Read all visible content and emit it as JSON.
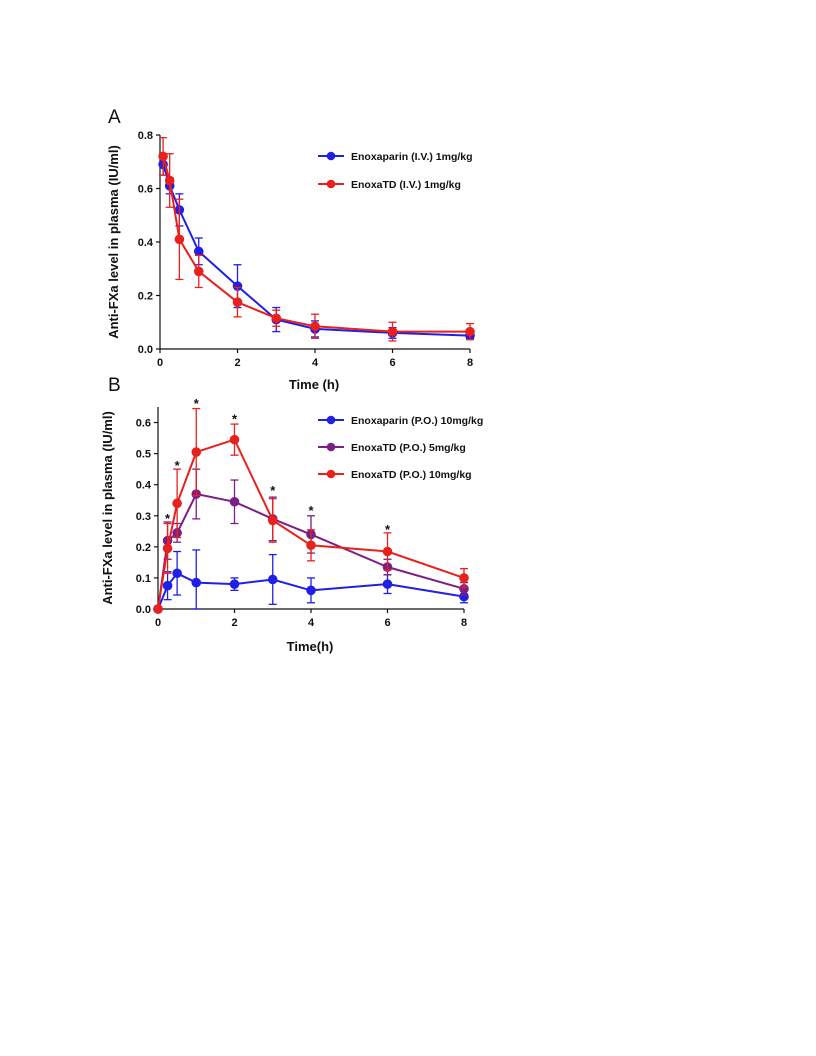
{
  "chart_data": [
    {
      "type": "line",
      "panel_label": "A",
      "xlabel": "Time (h)",
      "ylabel": "Anti-FXa level in plasma (IU/ml)",
      "xlim": [
        0,
        8
      ],
      "ylim": [
        0,
        0.8
      ],
      "x_ticks": [
        "0",
        "2",
        "4",
        "6",
        "8"
      ],
      "y_ticks": [
        "0.0",
        "0.2",
        "0.4",
        "0.6",
        "0.8"
      ],
      "x_tick_values": [
        0,
        2,
        4,
        6,
        8
      ],
      "y_tick_values": [
        0,
        0.2,
        0.4,
        0.6,
        0.8
      ],
      "grid": false,
      "legend_position": "top-right",
      "significance_marks": [],
      "series": [
        {
          "name": "Enoxaparin (I.V.) 1mg/kg",
          "color": "#1f1fe6",
          "x": [
            0.08,
            0.25,
            0.5,
            1,
            2,
            3,
            4,
            6,
            8
          ],
          "y": [
            0.69,
            0.61,
            0.52,
            0.365,
            0.235,
            0.11,
            0.075,
            0.06,
            0.05
          ],
          "err": [
            0.04,
            0.03,
            0.06,
            0.05,
            0.08,
            0.045,
            0.03,
            0.02,
            0.01
          ]
        },
        {
          "name": "EnoxaTD (I.V.) 1mg/kg",
          "color": "#e8211c",
          "x": [
            0.08,
            0.25,
            0.5,
            1,
            2,
            3,
            4,
            6,
            8
          ],
          "y": [
            0.72,
            0.63,
            0.41,
            0.29,
            0.175,
            0.115,
            0.085,
            0.065,
            0.065
          ],
          "err": [
            0.07,
            0.1,
            0.15,
            0.06,
            0.055,
            0.03,
            0.045,
            0.035,
            0.03
          ]
        }
      ]
    },
    {
      "type": "line",
      "panel_label": "B",
      "xlabel": "Time(h)",
      "ylabel": "Anti-FXa level in plasma (IU/ml)",
      "xlim": [
        0,
        8
      ],
      "ylim": [
        0,
        0.65
      ],
      "x_ticks": [
        "0",
        "2",
        "4",
        "6",
        "8"
      ],
      "y_ticks": [
        "0.0",
        "0.1",
        "0.2",
        "0.3",
        "0.4",
        "0.5",
        "0.6"
      ],
      "x_tick_values": [
        0,
        2,
        4,
        6,
        8
      ],
      "y_tick_values": [
        0,
        0.1,
        0.2,
        0.3,
        0.4,
        0.5,
        0.6
      ],
      "grid": false,
      "legend_position": "top-right",
      "significance_marks": [
        {
          "x": 0.25,
          "y": 0.29,
          "label": "*"
        },
        {
          "x": 0.5,
          "y": 0.46,
          "label": "*"
        },
        {
          "x": 1,
          "y": 0.66,
          "label": "*"
        },
        {
          "x": 2,
          "y": 0.61,
          "label": "*"
        },
        {
          "x": 3,
          "y": 0.38,
          "label": "*"
        },
        {
          "x": 4,
          "y": 0.315,
          "label": "*"
        },
        {
          "x": 6,
          "y": 0.255,
          "label": "*"
        }
      ],
      "series": [
        {
          "name": "Enoxaparin (P.O.) 10mg/kg",
          "color": "#1f1fe6",
          "x": [
            0,
            0.25,
            0.5,
            1,
            2,
            3,
            4,
            6,
            8
          ],
          "y": [
            0,
            0.075,
            0.115,
            0.085,
            0.08,
            0.095,
            0.06,
            0.08,
            0.04
          ],
          "err": [
            0,
            0.045,
            0.07,
            0.105,
            0.02,
            0.08,
            0.04,
            0.03,
            0.02
          ]
        },
        {
          "name": "EnoxaTD (P.O.) 5mg/kg",
          "color": "#7b1f86",
          "x": [
            0,
            0.25,
            0.5,
            1,
            2,
            3,
            4,
            6,
            8
          ],
          "y": [
            0,
            0.22,
            0.245,
            0.37,
            0.345,
            0.29,
            0.24,
            0.135,
            0.065
          ],
          "err": [
            0,
            0.06,
            0.03,
            0.08,
            0.07,
            0.07,
            0.06,
            0.025,
            0.02
          ]
        },
        {
          "name": "EnoxaTD (P.O.) 10mg/kg",
          "color": "#e8211c",
          "x": [
            0,
            0.25,
            0.5,
            1,
            2,
            3,
            4,
            6,
            8
          ],
          "y": [
            0,
            0.195,
            0.34,
            0.505,
            0.545,
            0.285,
            0.205,
            0.185,
            0.1
          ],
          "err": [
            0,
            0.08,
            0.11,
            0.14,
            0.05,
            0.07,
            0.05,
            0.06,
            0.03
          ]
        }
      ]
    }
  ]
}
